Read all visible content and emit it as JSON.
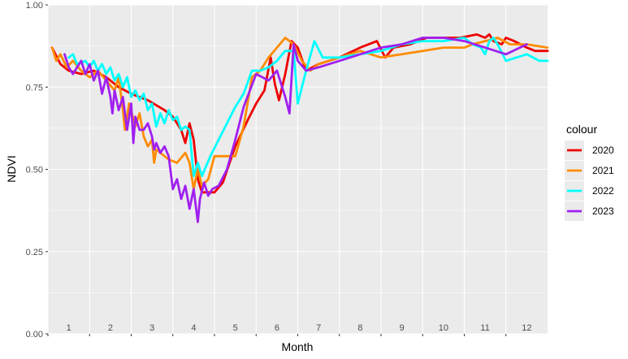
{
  "chart_data": {
    "type": "line",
    "xlabel": "Month",
    "ylabel": "NDVI",
    "xlim": [
      0.5,
      12.5
    ],
    "ylim": [
      0,
      1
    ],
    "month_ticks": [
      "1",
      "2",
      "3",
      "4",
      "5",
      "6",
      "7",
      "8",
      "9",
      "10",
      "11",
      "12"
    ],
    "y_ticks": [
      "0.00",
      "0.25",
      "0.50",
      "0.75",
      "1.00"
    ],
    "grid": true,
    "legend": {
      "title": "colour",
      "position": "right"
    },
    "series": [
      {
        "name": "2020",
        "color": "#ee0000",
        "points": [
          [
            0.6,
            0.87
          ],
          [
            0.8,
            0.82
          ],
          [
            1.0,
            0.8
          ],
          [
            1.3,
            0.79
          ],
          [
            1.6,
            0.8
          ],
          [
            1.9,
            0.78
          ],
          [
            2.2,
            0.75
          ],
          [
            2.5,
            0.73
          ],
          [
            2.9,
            0.71
          ],
          [
            3.3,
            0.68
          ],
          [
            3.5,
            0.66
          ],
          [
            3.7,
            0.62
          ],
          [
            3.8,
            0.58
          ],
          [
            3.9,
            0.64
          ],
          [
            4.0,
            0.59
          ],
          [
            4.1,
            0.47
          ],
          [
            4.2,
            0.43
          ],
          [
            4.5,
            0.43
          ],
          [
            4.7,
            0.46
          ],
          [
            5.0,
            0.57
          ],
          [
            5.3,
            0.65
          ],
          [
            5.5,
            0.7
          ],
          [
            5.7,
            0.74
          ],
          [
            5.85,
            0.84
          ],
          [
            5.95,
            0.76
          ],
          [
            6.05,
            0.71
          ],
          [
            6.2,
            0.79
          ],
          [
            6.35,
            0.89
          ],
          [
            6.5,
            0.87
          ],
          [
            6.7,
            0.8
          ],
          [
            7.0,
            0.82
          ],
          [
            7.5,
            0.84
          ],
          [
            8.0,
            0.87
          ],
          [
            8.4,
            0.89
          ],
          [
            8.6,
            0.84
          ],
          [
            8.8,
            0.87
          ],
          [
            9.2,
            0.88
          ],
          [
            9.6,
            0.9
          ],
          [
            10.0,
            0.9
          ],
          [
            10.4,
            0.9
          ],
          [
            10.8,
            0.91
          ],
          [
            11.0,
            0.9
          ],
          [
            11.1,
            0.91
          ],
          [
            11.2,
            0.89
          ],
          [
            11.4,
            0.88
          ],
          [
            11.5,
            0.9
          ],
          [
            11.7,
            0.89
          ],
          [
            12.0,
            0.87
          ],
          [
            12.2,
            0.86
          ],
          [
            12.5,
            0.86
          ]
        ]
      },
      {
        "name": "2021",
        "color": "#ff8c00",
        "points": [
          [
            0.6,
            0.87
          ],
          [
            0.7,
            0.83
          ],
          [
            0.8,
            0.85
          ],
          [
            0.95,
            0.81
          ],
          [
            1.1,
            0.83
          ],
          [
            1.3,
            0.8
          ],
          [
            1.5,
            0.78
          ],
          [
            1.7,
            0.8
          ],
          [
            1.9,
            0.77
          ],
          [
            2.1,
            0.74
          ],
          [
            2.2,
            0.78
          ],
          [
            2.3,
            0.68
          ],
          [
            2.35,
            0.62
          ],
          [
            2.45,
            0.7
          ],
          [
            2.6,
            0.63
          ],
          [
            2.7,
            0.67
          ],
          [
            2.8,
            0.6
          ],
          [
            2.9,
            0.57
          ],
          [
            3.0,
            0.59
          ],
          [
            3.05,
            0.52
          ],
          [
            3.1,
            0.56
          ],
          [
            3.2,
            0.55
          ],
          [
            3.4,
            0.53
          ],
          [
            3.6,
            0.52
          ],
          [
            3.8,
            0.55
          ],
          [
            3.9,
            0.52
          ],
          [
            4.0,
            0.44
          ],
          [
            4.1,
            0.5
          ],
          [
            4.2,
            0.45
          ],
          [
            4.35,
            0.47
          ],
          [
            4.5,
            0.54
          ],
          [
            4.8,
            0.54
          ],
          [
            5.0,
            0.54
          ],
          [
            5.2,
            0.63
          ],
          [
            5.4,
            0.78
          ],
          [
            5.6,
            0.8
          ],
          [
            5.8,
            0.84
          ],
          [
            6.0,
            0.87
          ],
          [
            6.2,
            0.9
          ],
          [
            6.4,
            0.88
          ],
          [
            6.6,
            0.83
          ],
          [
            6.8,
            0.8
          ],
          [
            7.0,
            0.82
          ],
          [
            7.5,
            0.84
          ],
          [
            8.0,
            0.86
          ],
          [
            8.5,
            0.84
          ],
          [
            9.0,
            0.85
          ],
          [
            9.5,
            0.86
          ],
          [
            10.0,
            0.87
          ],
          [
            10.5,
            0.87
          ],
          [
            10.7,
            0.88
          ],
          [
            11.0,
            0.89
          ],
          [
            11.3,
            0.9
          ],
          [
            11.6,
            0.88
          ],
          [
            12.0,
            0.88
          ],
          [
            12.5,
            0.87
          ]
        ]
      },
      {
        "name": "2022",
        "color": "#00ffff",
        "points": [
          [
            1.0,
            0.84
          ],
          [
            1.1,
            0.85
          ],
          [
            1.2,
            0.82
          ],
          [
            1.4,
            0.83
          ],
          [
            1.5,
            0.81
          ],
          [
            1.6,
            0.83
          ],
          [
            1.7,
            0.8
          ],
          [
            1.8,
            0.82
          ],
          [
            1.9,
            0.79
          ],
          [
            2.0,
            0.81
          ],
          [
            2.1,
            0.77
          ],
          [
            2.2,
            0.79
          ],
          [
            2.3,
            0.75
          ],
          [
            2.4,
            0.78
          ],
          [
            2.5,
            0.72
          ],
          [
            2.6,
            0.74
          ],
          [
            2.7,
            0.71
          ],
          [
            2.8,
            0.73
          ],
          [
            2.9,
            0.68
          ],
          [
            3.0,
            0.7
          ],
          [
            3.1,
            0.63
          ],
          [
            3.2,
            0.67
          ],
          [
            3.3,
            0.64
          ],
          [
            3.4,
            0.68
          ],
          [
            3.5,
            0.65
          ],
          [
            3.6,
            0.66
          ],
          [
            3.7,
            0.62
          ],
          [
            3.8,
            0.63
          ],
          [
            3.9,
            0.62
          ],
          [
            4.0,
            0.48
          ],
          [
            4.1,
            0.52
          ],
          [
            4.2,
            0.48
          ],
          [
            4.4,
            0.54
          ],
          [
            4.6,
            0.59
          ],
          [
            5.0,
            0.69
          ],
          [
            5.2,
            0.73
          ],
          [
            5.4,
            0.8
          ],
          [
            5.6,
            0.8
          ],
          [
            5.8,
            0.81
          ],
          [
            6.0,
            0.83
          ],
          [
            6.2,
            0.86
          ],
          [
            6.4,
            0.86
          ],
          [
            6.5,
            0.7
          ],
          [
            6.7,
            0.8
          ],
          [
            6.9,
            0.89
          ],
          [
            7.1,
            0.84
          ],
          [
            7.5,
            0.84
          ],
          [
            8.0,
            0.85
          ],
          [
            8.5,
            0.86
          ],
          [
            9.0,
            0.88
          ],
          [
            9.5,
            0.89
          ],
          [
            10.0,
            0.89
          ],
          [
            10.5,
            0.9
          ],
          [
            10.7,
            0.88
          ],
          [
            10.9,
            0.87
          ],
          [
            11.0,
            0.85
          ],
          [
            11.1,
            0.89
          ],
          [
            11.2,
            0.9
          ],
          [
            11.3,
            0.88
          ],
          [
            11.5,
            0.83
          ],
          [
            12.0,
            0.85
          ],
          [
            12.3,
            0.83
          ],
          [
            12.5,
            0.83
          ]
        ]
      },
      {
        "name": "2023",
        "color": "#a020f0",
        "points": [
          [
            0.9,
            0.85
          ],
          [
            1.0,
            0.81
          ],
          [
            1.1,
            0.79
          ],
          [
            1.2,
            0.81
          ],
          [
            1.3,
            0.83
          ],
          [
            1.4,
            0.79
          ],
          [
            1.5,
            0.82
          ],
          [
            1.6,
            0.77
          ],
          [
            1.7,
            0.8
          ],
          [
            1.8,
            0.73
          ],
          [
            1.9,
            0.78
          ],
          [
            2.0,
            0.72
          ],
          [
            2.05,
            0.67
          ],
          [
            2.1,
            0.74
          ],
          [
            2.2,
            0.68
          ],
          [
            2.3,
            0.72
          ],
          [
            2.4,
            0.62
          ],
          [
            2.5,
            0.7
          ],
          [
            2.55,
            0.58
          ],
          [
            2.6,
            0.66
          ],
          [
            2.7,
            0.62
          ],
          [
            2.8,
            0.62
          ],
          [
            2.9,
            0.64
          ],
          [
            3.0,
            0.6
          ],
          [
            3.05,
            0.56
          ],
          [
            3.1,
            0.58
          ],
          [
            3.2,
            0.55
          ],
          [
            3.3,
            0.57
          ],
          [
            3.4,
            0.54
          ],
          [
            3.5,
            0.44
          ],
          [
            3.6,
            0.47
          ],
          [
            3.7,
            0.41
          ],
          [
            3.8,
            0.45
          ],
          [
            3.9,
            0.38
          ],
          [
            4.0,
            0.44
          ],
          [
            4.1,
            0.34
          ],
          [
            4.15,
            0.41
          ],
          [
            4.25,
            0.46
          ],
          [
            4.35,
            0.42
          ],
          [
            4.45,
            0.44
          ],
          [
            4.6,
            0.45
          ],
          [
            4.8,
            0.5
          ],
          [
            5.0,
            0.59
          ],
          [
            5.2,
            0.69
          ],
          [
            5.5,
            0.79
          ],
          [
            5.8,
            0.77
          ],
          [
            6.0,
            0.8
          ],
          [
            6.2,
            0.72
          ],
          [
            6.3,
            0.67
          ],
          [
            6.4,
            0.88
          ],
          [
            6.5,
            0.83
          ],
          [
            6.7,
            0.8
          ],
          [
            7.0,
            0.81
          ],
          [
            7.5,
            0.83
          ],
          [
            8.0,
            0.85
          ],
          [
            8.5,
            0.87
          ],
          [
            9.0,
            0.88
          ],
          [
            9.5,
            0.9
          ],
          [
            10.0,
            0.9
          ],
          [
            10.5,
            0.89
          ],
          [
            11.0,
            0.87
          ],
          [
            11.5,
            0.85
          ],
          [
            12.0,
            0.88
          ]
        ]
      }
    ]
  }
}
